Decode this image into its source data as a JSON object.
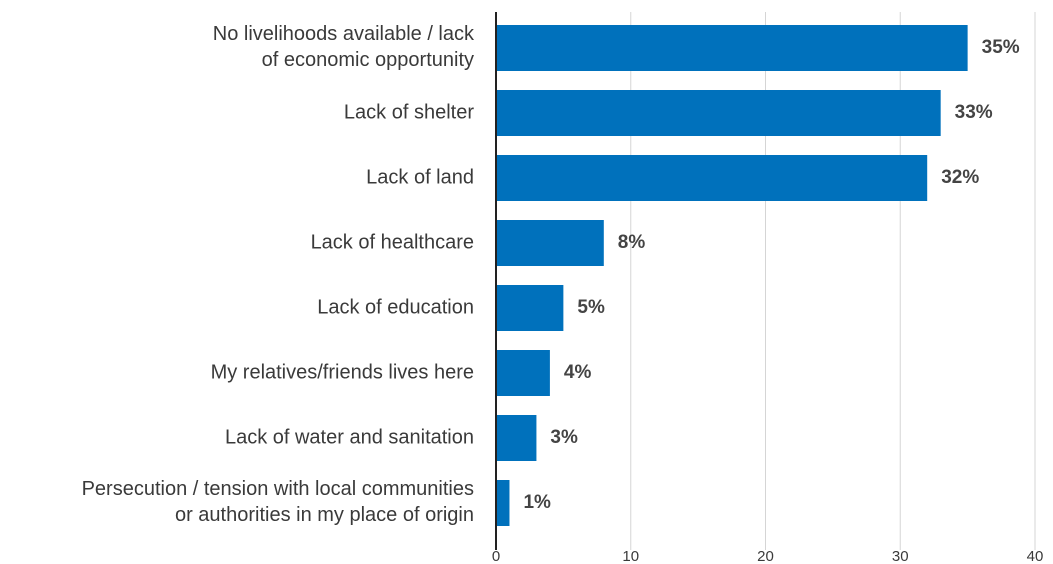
{
  "chart_data": {
    "type": "bar",
    "orientation": "horizontal",
    "categories": [
      "No livelihoods available / lack\nof economic opportunity",
      "Lack of shelter",
      "Lack of land",
      "Lack of healthcare",
      "Lack of education",
      "My relatives/friends lives here",
      "Lack of water and sanitation",
      "Persecution / tension with local communities\nor authorities in my place of origin"
    ],
    "values": [
      35,
      33,
      32,
      8,
      5,
      4,
      3,
      1
    ],
    "value_labels": [
      "35%",
      "33%",
      "32%",
      "8%",
      "5%",
      "4%",
      "3%",
      "1%"
    ],
    "color": "#0071bc",
    "xlim": [
      0,
      40
    ],
    "xticks": [
      0,
      10,
      20,
      30,
      40
    ],
    "grid": true
  }
}
